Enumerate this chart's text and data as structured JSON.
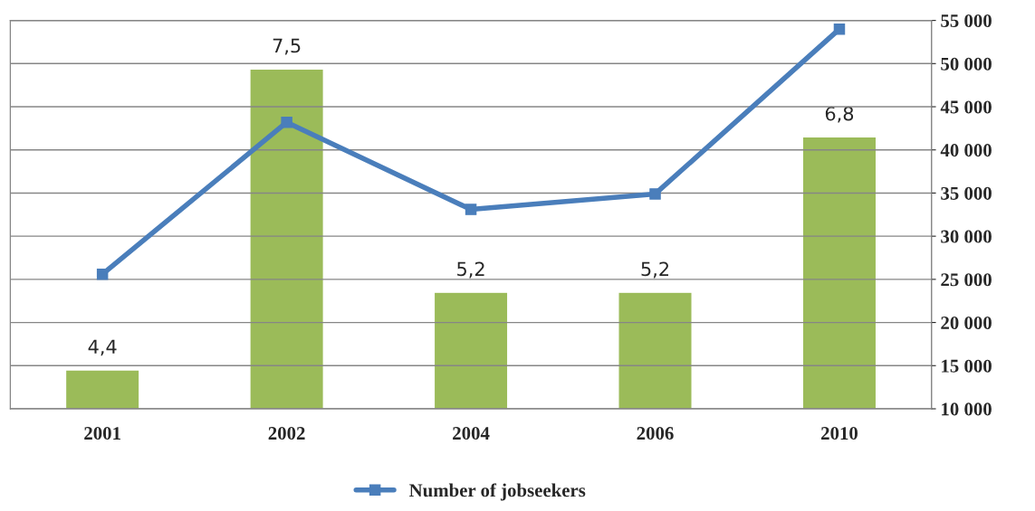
{
  "chart_data": {
    "type": "bar",
    "categories": [
      "2001",
      "2002",
      "2004",
      "2006",
      "2010"
    ],
    "series": [
      {
        "color": "#9bbb59",
        "values": [
          4.4,
          7.5,
          5.2,
          5.2,
          6.8
        ],
        "value_labels": [
          "4,4",
          "7,5",
          "5,2",
          "5,2",
          "6,8"
        ]
      },
      {
        "type": "line",
        "name": "Number of jobseekers",
        "axis": "y2",
        "color": "#4a7ebb",
        "marker": "square",
        "values": [
          25600,
          43200,
          33100,
          34900,
          54000
        ]
      }
    ],
    "ylim": [
      4,
      8
    ],
    "y2lim": [
      10000,
      55000
    ],
    "y2ticks": [
      {
        "value": 10000,
        "label": "10 000"
      },
      {
        "value": 15000,
        "label": "15 000"
      },
      {
        "value": 20000,
        "label": "20 000"
      },
      {
        "value": 25000,
        "label": "25 000"
      },
      {
        "value": 30000,
        "label": "30 000"
      },
      {
        "value": 35000,
        "label": "35 000"
      },
      {
        "value": 40000,
        "label": "40 000"
      },
      {
        "value": 45000,
        "label": "45 000"
      },
      {
        "value": 50000,
        "label": "50 000"
      },
      {
        "value": 55000,
        "label": "55 000"
      }
    ],
    "grid": "y",
    "legend": "bottom"
  }
}
